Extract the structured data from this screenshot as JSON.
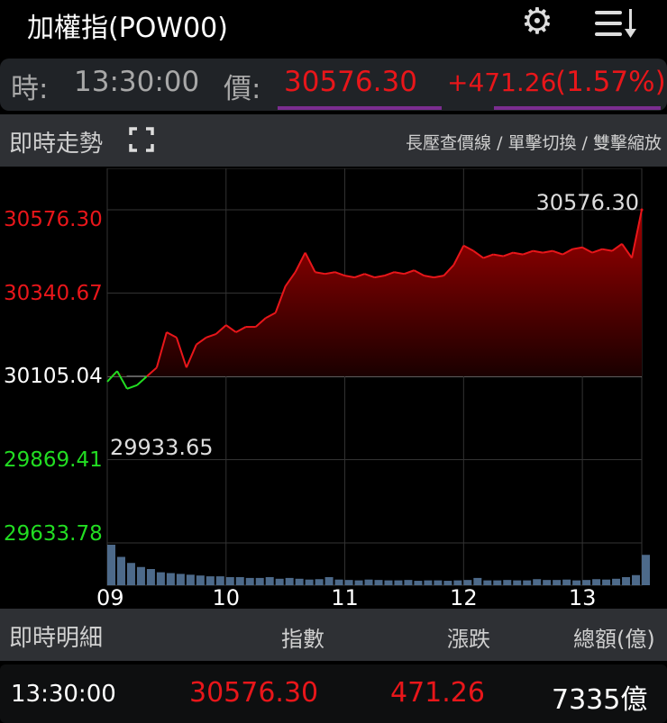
{
  "header": {
    "title": "加權指(POW00)",
    "settings_icon": "gear-icon",
    "menu_icon": "sort-list-icon"
  },
  "quote": {
    "time_label": "時:",
    "time": "13:30:00",
    "price_label": "價:",
    "price": "30576.30",
    "change": "+471.26",
    "change_pct": "(1.57%)",
    "up_color": "#e8161a",
    "down_color": "#22dd22"
  },
  "trend_section": {
    "title": "即時走勢",
    "fullscreen_icon": "fullscreen-icon",
    "hint": "長壓查價線 / 單擊切換 / 雙擊縮放"
  },
  "chart_data": {
    "type": "area",
    "x_ticks": [
      "09",
      "10",
      "11",
      "12",
      "13"
    ],
    "y_ticks": [
      "30576.30",
      "30340.67",
      "30105.04",
      "29869.41",
      "29633.78"
    ],
    "ylim": [
      29633.78,
      30576.3
    ],
    "reference": 30105.04,
    "high_label": "30576.30",
    "low_label": "29933.65",
    "grid": true,
    "x_minutes_range": [
      0,
      270
    ],
    "price": [
      30090,
      30120,
      30070,
      30080,
      30105,
      30130,
      30230,
      30215,
      30130,
      30195,
      30215,
      30225,
      30250,
      30230,
      30245,
      30245,
      30270,
      30285,
      30360,
      30400,
      30455,
      30400,
      30395,
      30400,
      30390,
      30385,
      30395,
      30385,
      30390,
      30400,
      30395,
      30405,
      30390,
      30385,
      30390,
      30420,
      30475,
      30460,
      30440,
      30450,
      30445,
      30455,
      30450,
      30460,
      30455,
      30460,
      30450,
      30465,
      30470,
      30455,
      30465,
      30460,
      30480,
      30440,
      30576.3
    ],
    "volume_relative": [
      1.0,
      0.7,
      0.55,
      0.45,
      0.4,
      0.32,
      0.3,
      0.28,
      0.26,
      0.24,
      0.22,
      0.22,
      0.2,
      0.2,
      0.18,
      0.18,
      0.2,
      0.16,
      0.18,
      0.16,
      0.14,
      0.15,
      0.2,
      0.14,
      0.13,
      0.12,
      0.14,
      0.13,
      0.12,
      0.12,
      0.13,
      0.11,
      0.12,
      0.12,
      0.11,
      0.12,
      0.13,
      0.18,
      0.12,
      0.12,
      0.13,
      0.12,
      0.12,
      0.15,
      0.13,
      0.13,
      0.14,
      0.12,
      0.13,
      0.15,
      0.14,
      0.16,
      0.2,
      0.25,
      0.75
    ]
  },
  "detail": {
    "title": "即時明細",
    "columns": [
      "指數",
      "漲跌",
      "總額(億)"
    ],
    "rows": [
      {
        "time": "13:30:00",
        "index": "30576.30",
        "change": "471.26",
        "amount": "7335億"
      }
    ]
  }
}
